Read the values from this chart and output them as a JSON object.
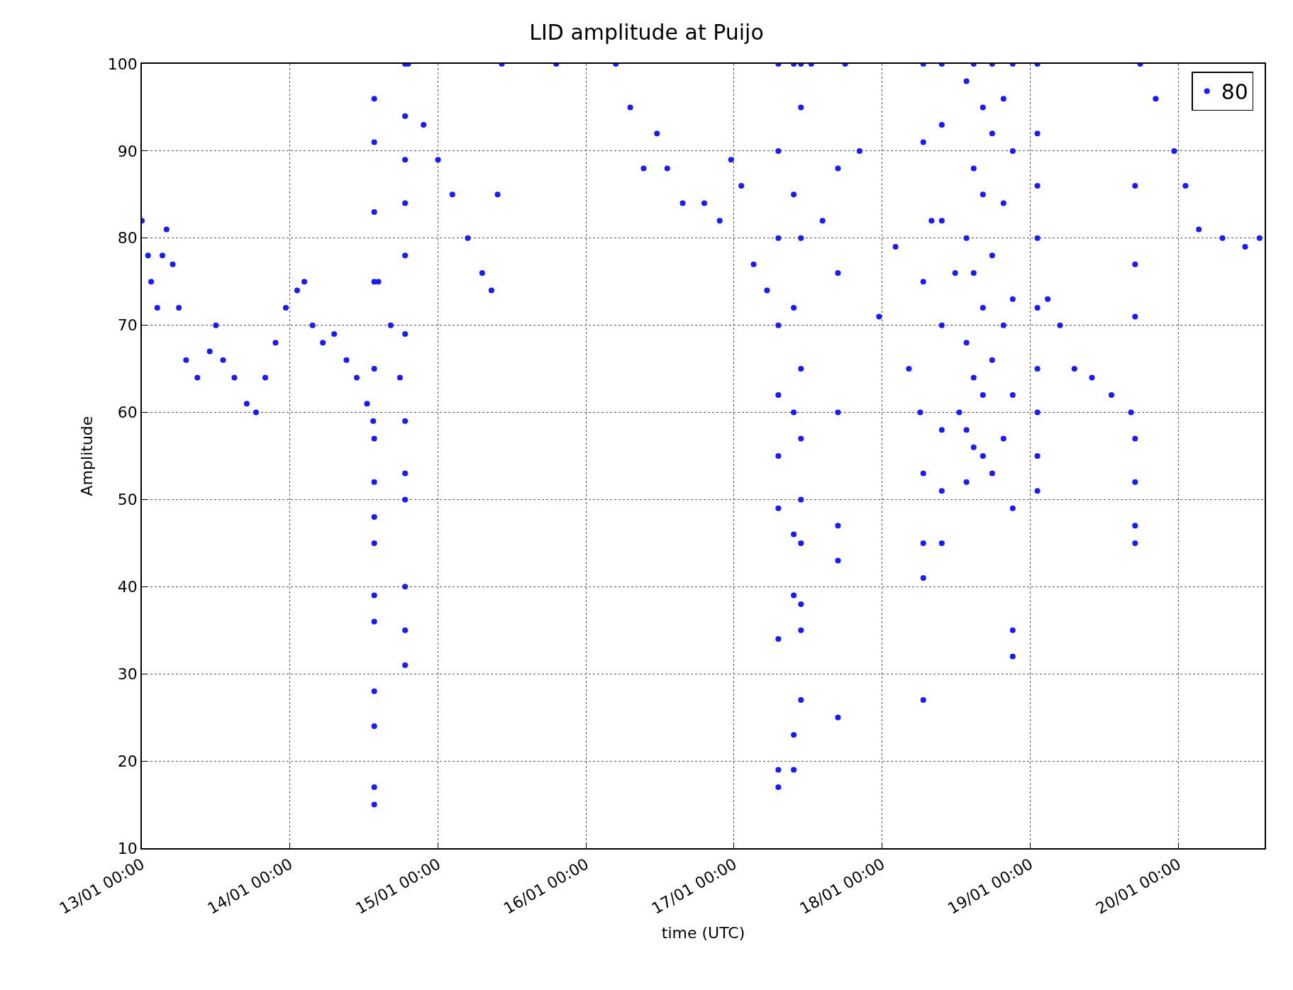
{
  "chart_data": {
    "type": "scatter",
    "title": "LID amplitude at Puijo",
    "xlabel": "time (UTC)",
    "ylabel": "Amplitude",
    "xlim": [
      "--01-13T00:00",
      "--01-20T14:00"
    ],
    "xticks": [
      {
        "value": "--01-13T00:00",
        "label": "13/01 00:00"
      },
      {
        "value": "--01-14T00:00",
        "label": "14/01 00:00"
      },
      {
        "value": "--01-15T00:00",
        "label": "15/01 00:00"
      },
      {
        "value": "--01-16T00:00",
        "label": "16/01 00:00"
      },
      {
        "value": "--01-17T00:00",
        "label": "17/01 00:00"
      },
      {
        "value": "--01-18T00:00",
        "label": "18/01 00:00"
      },
      {
        "value": "--01-19T00:00",
        "label": "19/01 00:00"
      },
      {
        "value": "--01-20T00:00",
        "label": "20/01 00:00"
      }
    ],
    "ylim": [
      10,
      100
    ],
    "yticks": [
      10,
      20,
      30,
      40,
      50,
      60,
      70,
      80,
      90,
      100
    ],
    "grid": true,
    "legend": "top right",
    "marker": "circle",
    "series": [
      {
        "name": "80",
        "color": "#1a1aff",
        "x": [
          "--01-13T00:00",
          "--01-13T01:00",
          "--01-13T01:30",
          "--01-13T02:30",
          "--01-13T03:20",
          "--01-13T04:00",
          "--01-13T05:00",
          "--01-13T06:00",
          "--01-13T07:10",
          "--01-13T09:00",
          "--01-13T11:00",
          "--01-13T12:00",
          "--01-13T13:10",
          "--01-13T15:00",
          "--01-13T17:00",
          "--01-13T18:30",
          "--01-13T20:00",
          "--01-13T21:40",
          "--01-13T23:20",
          "--01-14T01:10",
          "--01-14T02:20",
          "--01-14T03:40",
          "--01-14T05:20",
          "--01-14T07:10",
          "--01-14T09:10",
          "--01-14T10:50",
          "--01-14T12:30",
          "--01-14T13:30",
          "--01-14T13:40",
          "--01-14T13:40",
          "--01-14T13:40",
          "--01-14T13:40",
          "--01-14T13:40",
          "--01-14T13:40",
          "--01-14T13:40",
          "--01-14T13:40",
          "--01-14T13:40",
          "--01-14T13:40",
          "--01-14T13:40",
          "--01-14T13:40",
          "--01-14T13:40",
          "--01-14T13:40",
          "--01-14T13:40",
          "--01-14T14:20",
          "--01-14T16:20",
          "--01-14T17:50",
          "--01-14T18:40",
          "--01-14T18:40",
          "--01-14T18:40",
          "--01-14T18:40",
          "--01-14T18:40",
          "--01-14T18:40",
          "--01-14T18:40",
          "--01-14T18:40",
          "--01-14T18:40",
          "--01-14T18:40",
          "--01-14T18:40",
          "--01-14T18:40",
          "--01-14T19:10",
          "--01-14T21:40",
          "--01-15T00:00",
          "--01-15T02:20",
          "--01-15T04:50",
          "--01-15T07:10",
          "--01-15T08:40",
          "--01-15T09:40",
          "--01-15T10:20",
          "--01-15T19:10",
          "--01-16T04:50",
          "--01-16T07:10",
          "--01-16T09:20",
          "--01-16T11:30",
          "--01-16T13:10",
          "--01-16T15:40",
          "--01-16T19:10",
          "--01-16T21:40",
          "--01-16T23:30",
          "--01-17T01:10",
          "--01-17T03:10",
          "--01-17T05:20",
          "--01-17T07:10",
          "--01-17T07:10",
          "--01-17T07:10",
          "--01-17T07:10",
          "--01-17T07:10",
          "--01-17T07:10",
          "--01-17T07:10",
          "--01-17T07:10",
          "--01-17T07:10",
          "--01-17T07:10",
          "--01-17T09:40",
          "--01-17T09:40",
          "--01-17T09:40",
          "--01-17T09:40",
          "--01-17T09:40",
          "--01-17T09:40",
          "--01-17T09:40",
          "--01-17T09:40",
          "--01-17T10:50",
          "--01-17T10:50",
          "--01-17T10:50",
          "--01-17T10:50",
          "--01-17T10:50",
          "--01-17T10:50",
          "--01-17T10:50",
          "--01-17T10:50",
          "--01-17T10:50",
          "--01-17T10:50",
          "--01-17T12:30",
          "--01-17T14:20",
          "--01-17T16:50",
          "--01-17T16:50",
          "--01-17T16:50",
          "--01-17T16:50",
          "--01-17T16:50",
          "--01-17T16:50",
          "--01-17T18:00",
          "--01-17T20:20",
          "--01-17T23:30",
          "--01-18T02:10",
          "--01-18T04:20",
          "--01-18T06:10",
          "--01-18T06:40",
          "--01-18T06:40",
          "--01-18T06:40",
          "--01-18T06:40",
          "--01-18T06:40",
          "--01-18T06:40",
          "--01-18T06:40",
          "--01-18T08:00",
          "--01-18T09:40",
          "--01-18T09:40",
          "--01-18T09:40",
          "--01-18T09:40",
          "--01-18T09:40",
          "--01-18T09:40",
          "--01-18T09:40",
          "--01-18T11:50",
          "--01-18T12:30",
          "--01-18T13:40",
          "--01-18T13:40",
          "--01-18T13:40",
          "--01-18T13:40",
          "--01-18T13:40",
          "--01-18T14:50",
          "--01-18T14:50",
          "--01-18T14:50",
          "--01-18T14:50",
          "--01-18T14:50",
          "--01-18T16:20",
          "--01-18T16:20",
          "--01-18T16:20",
          "--01-18T16:20",
          "--01-18T16:20",
          "--01-18T17:50",
          "--01-18T17:50",
          "--01-18T17:50",
          "--01-18T17:50",
          "--01-18T17:50",
          "--01-18T19:40",
          "--01-18T19:40",
          "--01-18T19:40",
          "--01-18T19:40",
          "--01-18T21:10",
          "--01-18T21:10",
          "--01-18T21:10",
          "--01-18T21:10",
          "--01-18T21:10",
          "--01-18T21:10",
          "--01-18T21:10",
          "--01-19T01:10",
          "--01-19T01:10",
          "--01-19T01:10",
          "--01-19T01:10",
          "--01-19T01:10",
          "--01-19T01:10",
          "--01-19T01:10",
          "--01-19T01:10",
          "--01-19T01:10",
          "--01-19T02:50",
          "--01-19T04:50",
          "--01-19T07:10",
          "--01-19T10:00",
          "--01-19T13:10",
          "--01-19T16:20",
          "--01-19T17:00",
          "--01-19T17:00",
          "--01-19T17:00",
          "--01-19T17:00",
          "--01-19T17:00",
          "--01-19T17:00",
          "--01-19T17:00",
          "--01-19T17:50",
          "--01-19T20:20",
          "--01-19T23:20",
          "--01-20T01:10",
          "--01-20T03:20",
          "--01-20T07:10",
          "--01-20T10:50",
          "--01-20T13:10"
        ],
        "values": [
          82,
          78,
          75,
          72,
          78,
          81,
          77,
          72,
          66,
          64,
          67,
          70,
          66,
          64,
          61,
          60,
          64,
          68,
          72,
          74,
          75,
          70,
          68,
          69,
          66,
          64,
          61,
          59,
          15,
          17,
          24,
          28,
          36,
          39,
          45,
          48,
          52,
          57,
          65,
          75,
          83,
          91,
          96,
          75,
          70,
          64,
          59,
          31,
          35,
          40,
          50,
          53,
          69,
          78,
          84,
          89,
          94,
          100,
          100,
          93,
          89,
          85,
          80,
          76,
          74,
          85,
          100,
          100,
          100,
          95,
          88,
          92,
          88,
          84,
          84,
          82,
          89,
          86,
          77,
          74,
          62,
          17,
          19,
          34,
          49,
          55,
          70,
          80,
          90,
          100,
          19,
          23,
          39,
          46,
          60,
          72,
          85,
          100,
          27,
          35,
          38,
          45,
          50,
          57,
          65,
          80,
          95,
          100,
          100,
          82,
          60,
          25,
          43,
          47,
          76,
          88,
          100,
          90,
          71,
          79,
          65,
          60,
          27,
          41,
          45,
          53,
          75,
          91,
          100,
          82,
          45,
          51,
          58,
          70,
          82,
          93,
          100,
          76,
          60,
          52,
          58,
          68,
          80,
          98,
          56,
          64,
          76,
          88,
          100,
          55,
          62,
          72,
          85,
          95,
          53,
          66,
          78,
          92,
          100,
          57,
          70,
          84,
          96,
          49,
          35,
          32,
          62,
          73,
          90,
          100,
          51,
          55,
          60,
          65,
          72,
          80,
          86,
          92,
          100,
          73,
          70,
          65,
          64,
          62,
          60,
          45,
          47,
          52,
          57,
          71,
          77,
          86,
          100,
          96,
          90,
          86,
          81,
          80,
          79,
          80
        ]
      }
    ]
  }
}
